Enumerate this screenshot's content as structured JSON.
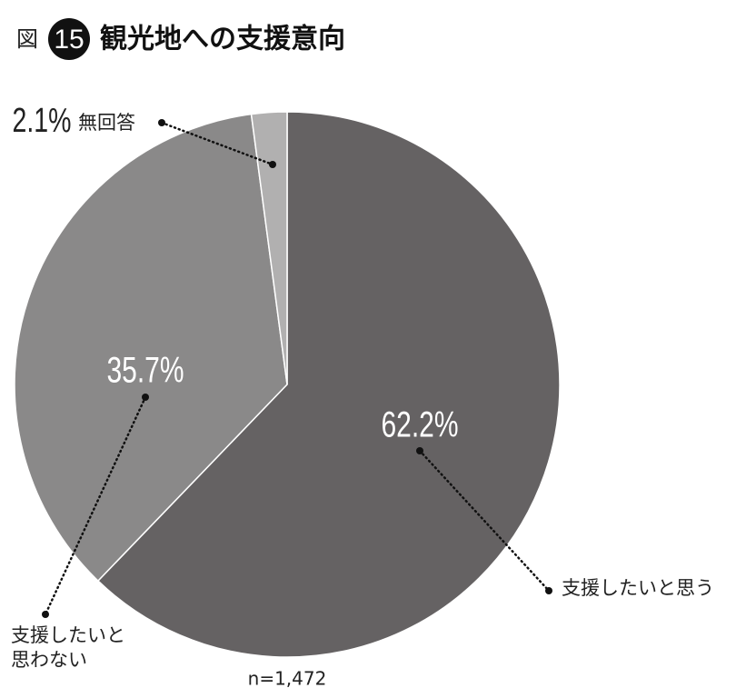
{
  "chart_data": {
    "type": "pie",
    "figure_label": "図",
    "figure_number": "15",
    "title": "観光地への支援意向",
    "note": "n=1,472",
    "categories": [
      "支援したいと思う",
      "支援したいと思わない",
      "無回答"
    ],
    "values": [
      62.2,
      35.7,
      2.1
    ],
    "value_labels": [
      "62.2%",
      "35.7%",
      "2.1%"
    ],
    "colors": [
      "#656263",
      "#8a8989",
      "#b1b0b0"
    ]
  }
}
